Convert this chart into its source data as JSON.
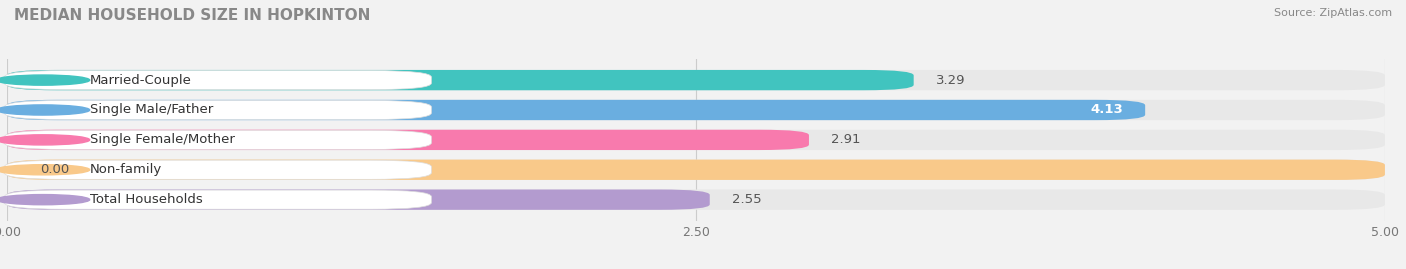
{
  "title": "MEDIAN HOUSEHOLD SIZE IN HOPKINTON",
  "source": "Source: ZipAtlas.com",
  "categories": [
    "Married-Couple",
    "Single Male/Father",
    "Single Female/Mother",
    "Non-family",
    "Total Households"
  ],
  "values": [
    3.29,
    4.13,
    2.91,
    0.0,
    2.55
  ],
  "bar_colors": [
    "#41c4bf",
    "#6aaee0",
    "#f87aad",
    "#f9c98a",
    "#b39bcf"
  ],
  "label_pill_colors": [
    "#ffffff",
    "#ffffff",
    "#ffffff",
    "#ffffff",
    "#ffffff"
  ],
  "xlim": [
    0,
    5.0
  ],
  "xticks": [
    0.0,
    2.5,
    5.0
  ],
  "xtick_labels": [
    "0.00",
    "2.50",
    "5.00"
  ],
  "label_fontsize": 9.5,
  "value_fontsize": 9.5,
  "title_fontsize": 11,
  "background_color": "#f2f2f2",
  "row_bg_color": "#e8e8e8",
  "value_inside_color": "#ffffff",
  "value_outside_color": "#555555"
}
